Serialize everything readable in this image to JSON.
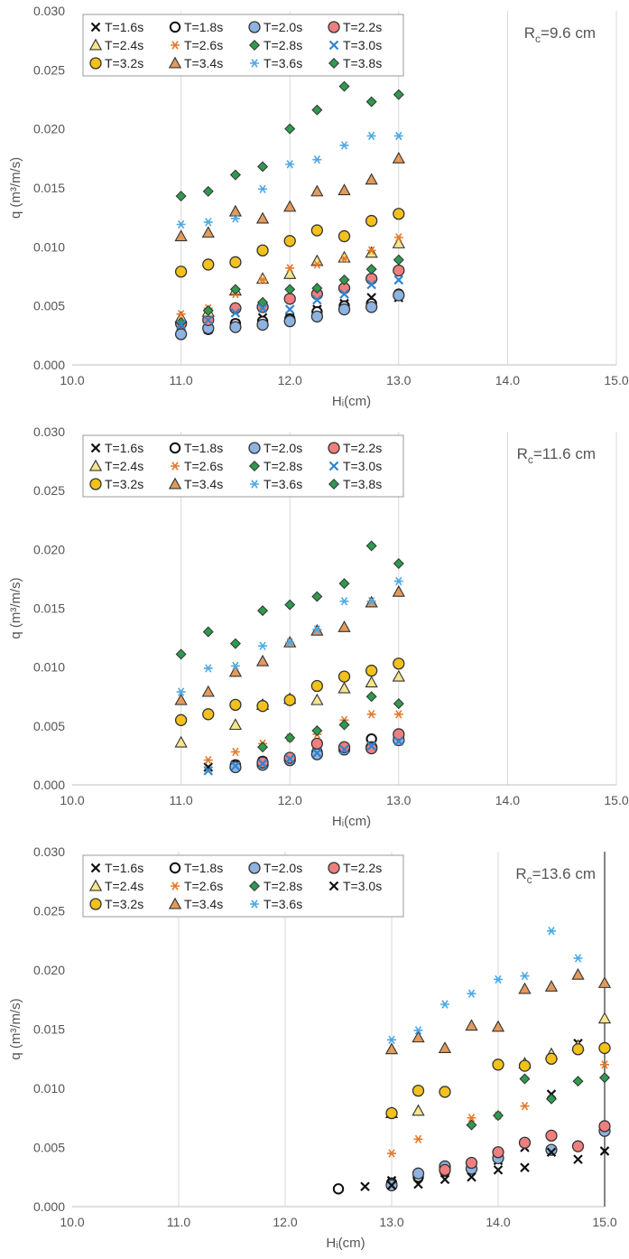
{
  "colors": {
    "black": "#111111",
    "lightblue": "#8fb3e0",
    "salmon": "#ef7f7f",
    "sand": "#f5e58c",
    "orange": "#e37a2e",
    "green": "#2e9a4e",
    "blue": "#2f84cf",
    "gold": "#f2c21b",
    "tan": "#e39a5a",
    "sky": "#4ea9e4",
    "grid": "#d9d9d9",
    "outline": "#333333"
  },
  "chart_data": [
    {
      "type": "scatter",
      "annotation_prefix": "R",
      "annotation_sub": "c",
      "annotation_suffix": "=9.6 cm",
      "xlabel": "Hᵢ(cm)",
      "ylabel": "q (m³/m/s)",
      "xlim": [
        10.0,
        15.0
      ],
      "ylim": [
        0.0,
        0.03
      ],
      "x_ticks": [
        "10.0",
        "11.0",
        "12.0",
        "13.0",
        "14.0",
        "15.0"
      ],
      "y_ticks": [
        "0.000",
        "0.005",
        "0.010",
        "0.015",
        "0.020",
        "0.025",
        "0.030"
      ],
      "grid": "vertical",
      "legend_position": "top-left",
      "series": [
        {
          "name": "T=1.6s",
          "marker": "x",
          "color": "black",
          "x": [
            11.0,
            11.25,
            11.5,
            11.75,
            12.0,
            12.25,
            12.5,
            12.75,
            13.0
          ],
          "y": [
            0.0027,
            0.003,
            0.0035,
            0.004,
            0.004,
            0.0047,
            0.0052,
            0.0057,
            0.0057
          ]
        },
        {
          "name": "T=1.8s",
          "marker": "circle-open",
          "color": "black",
          "x": [
            11.0,
            11.25,
            11.5,
            11.75,
            12.0,
            12.25,
            12.5,
            12.75,
            13.0
          ],
          "y": [
            0.0026,
            0.003,
            0.0035,
            0.0037,
            0.0039,
            0.0045,
            0.005,
            0.0052,
            0.006
          ]
        },
        {
          "name": "T=2.0s",
          "marker": "circle",
          "color": "lightblue",
          "x": [
            11.0,
            11.25,
            11.5,
            11.75,
            12.0,
            12.25,
            12.5,
            12.75,
            13.0
          ],
          "y": [
            0.0026,
            0.0031,
            0.0032,
            0.0034,
            0.0037,
            0.0041,
            0.0047,
            0.0049,
            0.0059
          ]
        },
        {
          "name": "T=2.2s",
          "marker": "circle",
          "color": "salmon",
          "x": [
            11.0,
            11.25,
            11.5,
            11.75,
            12.0,
            12.25,
            12.5,
            12.75,
            13.0
          ],
          "y": [
            0.0035,
            0.0038,
            0.0048,
            0.0049,
            0.0056,
            0.006,
            0.0065,
            0.0073,
            0.008
          ]
        },
        {
          "name": "T=2.4s",
          "marker": "triangle",
          "color": "sand",
          "x": [
            11.0,
            11.25,
            11.5,
            11.75,
            12.0,
            12.25,
            12.5,
            12.75,
            13.0
          ],
          "y": [
            0.004,
            0.0045,
            0.0063,
            0.0073,
            0.0077,
            0.0088,
            0.0091,
            0.0095,
            0.0103
          ]
        },
        {
          "name": "T=2.6s",
          "marker": "asterisk",
          "color": "orange",
          "x": [
            11.0,
            11.25,
            11.5,
            11.75,
            12.0,
            12.25,
            12.5,
            12.75,
            13.0
          ],
          "y": [
            0.0043,
            0.0048,
            0.006,
            0.0072,
            0.0082,
            0.0085,
            0.009,
            0.0097,
            0.0108
          ]
        },
        {
          "name": "T=2.8s",
          "marker": "diamond",
          "color": "green",
          "x": [
            11.0,
            11.25,
            11.5,
            11.75,
            12.0,
            12.25,
            12.5,
            12.75,
            13.0
          ],
          "y": [
            0.0036,
            0.0046,
            0.0064,
            0.0053,
            0.0064,
            0.0065,
            0.0072,
            0.0081,
            0.0089
          ]
        },
        {
          "name": "T=3.0s",
          "marker": "x",
          "color": "blue",
          "x": [
            11.0,
            11.25,
            11.5,
            11.75,
            12.0,
            12.25,
            12.5,
            12.75,
            13.0
          ],
          "y": [
            0.0034,
            0.0038,
            0.0044,
            0.0048,
            0.0047,
            0.0055,
            0.006,
            0.0068,
            0.0072
          ]
        },
        {
          "name": "T=3.2s",
          "marker": "circle",
          "color": "gold",
          "x": [
            11.0,
            11.25,
            11.5,
            11.75,
            12.0,
            12.25,
            12.5,
            12.75,
            13.0
          ],
          "y": [
            0.0079,
            0.0085,
            0.0087,
            0.0097,
            0.0105,
            0.0114,
            0.0109,
            0.0122,
            0.0128
          ]
        },
        {
          "name": "T=3.4s",
          "marker": "triangle",
          "color": "tan",
          "x": [
            11.0,
            11.25,
            11.5,
            11.75,
            12.0,
            12.25,
            12.5,
            12.75,
            13.0
          ],
          "y": [
            0.0109,
            0.0112,
            0.013,
            0.0124,
            0.0134,
            0.0147,
            0.0148,
            0.0157,
            0.0175
          ]
        },
        {
          "name": "T=3.6s",
          "marker": "asterisk",
          "color": "sky",
          "x": [
            11.0,
            11.25,
            11.5,
            11.75,
            12.0,
            12.25,
            12.5,
            12.75,
            13.0
          ],
          "y": [
            0.0119,
            0.0121,
            0.0124,
            0.0149,
            0.017,
            0.0174,
            0.0186,
            0.0194,
            0.0194
          ]
        },
        {
          "name": "T=3.8s",
          "marker": "diamond",
          "color": "green",
          "x": [
            11.0,
            11.25,
            11.5,
            11.75,
            12.0,
            12.25,
            12.5,
            12.75,
            13.0
          ],
          "y": [
            0.0143,
            0.0147,
            0.0161,
            0.0168,
            0.02,
            0.0216,
            0.0236,
            0.0223,
            0.0229
          ]
        }
      ]
    },
    {
      "type": "scatter",
      "annotation_prefix": "R",
      "annotation_sub": "c",
      "annotation_suffix": "=11.6 cm",
      "xlabel": "Hᵢ(cm)",
      "ylabel": "q (m³/m/s)",
      "xlim": [
        10.0,
        15.0
      ],
      "ylim": [
        0.0,
        0.03
      ],
      "x_ticks": [
        "10.0",
        "11.0",
        "12.0",
        "13.0",
        "14.0",
        "15.0"
      ],
      "y_ticks": [
        "0.000",
        "0.005",
        "0.010",
        "0.015",
        "0.020",
        "0.025",
        "0.030"
      ],
      "grid": "vertical",
      "legend_position": "top-left",
      "series": [
        {
          "name": "T=1.6s",
          "marker": "x",
          "color": "black",
          "x": [
            11.25,
            11.5,
            11.75,
            12.0,
            12.25,
            12.5,
            12.75,
            13.0
          ],
          "y": [
            0.0015,
            0.0017,
            0.002,
            0.0023,
            0.0028,
            0.0032,
            0.0037,
            0.004
          ]
        },
        {
          "name": "T=1.8s",
          "marker": "circle-open",
          "color": "black",
          "x": [
            11.5,
            11.75,
            12.0,
            12.25,
            12.5,
            12.75,
            13.0
          ],
          "y": [
            0.0017,
            0.002,
            0.0022,
            0.0028,
            0.0031,
            0.0039,
            0.0041
          ]
        },
        {
          "name": "T=2.0s",
          "marker": "circle",
          "color": "lightblue",
          "x": [
            11.5,
            11.75,
            12.0,
            12.25,
            12.5,
            12.75,
            13.0
          ],
          "y": [
            0.0015,
            0.0017,
            0.0021,
            0.0026,
            0.003,
            0.0032,
            0.0038
          ]
        },
        {
          "name": "T=2.2s",
          "marker": "circle",
          "color": "salmon",
          "x": [
            11.75,
            12.0,
            12.25,
            12.5,
            12.75,
            13.0
          ],
          "y": [
            0.0019,
            0.0023,
            0.0035,
            0.0032,
            0.0031,
            0.0043
          ]
        },
        {
          "name": "T=2.4s",
          "marker": "triangle",
          "color": "sand",
          "x": [
            11.0,
            11.5,
            11.75,
            12.0,
            12.25,
            12.5,
            12.75,
            13.0
          ],
          "y": [
            0.0036,
            0.0051,
            0.0068,
            0.0073,
            0.0072,
            0.0082,
            0.0087,
            0.0092
          ]
        },
        {
          "name": "T=2.6s",
          "marker": "asterisk",
          "color": "orange",
          "x": [
            11.25,
            11.5,
            11.75,
            12.0,
            12.25,
            12.5,
            12.75,
            13.0
          ],
          "y": [
            0.0021,
            0.0028,
            0.0035,
            0.004,
            0.0043,
            0.0055,
            0.006,
            0.006
          ]
        },
        {
          "name": "T=2.8s",
          "marker": "diamond",
          "color": "green",
          "x": [
            11.75,
            12.0,
            12.25,
            12.5,
            12.75,
            13.0
          ],
          "y": [
            0.0032,
            0.004,
            0.0046,
            0.0051,
            0.0075,
            0.0069
          ]
        },
        {
          "name": "T=3.0s",
          "marker": "x",
          "color": "blue",
          "x": [
            11.25,
            11.5,
            11.75,
            12.0,
            12.25,
            12.5,
            12.75,
            13.0
          ],
          "y": [
            0.0012,
            0.0016,
            0.0018,
            0.0022,
            0.0027,
            0.003,
            0.0033,
            0.0037
          ]
        },
        {
          "name": "T=3.2s",
          "marker": "circle",
          "color": "gold",
          "x": [
            11.0,
            11.25,
            11.5,
            11.75,
            12.0,
            12.25,
            12.5,
            12.75,
            13.0
          ],
          "y": [
            0.0055,
            0.006,
            0.0068,
            0.0067,
            0.0072,
            0.0084,
            0.0092,
            0.0097,
            0.0103
          ]
        },
        {
          "name": "T=3.4s",
          "marker": "triangle",
          "color": "tan",
          "x": [
            11.0,
            11.25,
            11.5,
            11.75,
            12.0,
            12.25,
            12.5,
            12.75,
            13.0
          ],
          "y": [
            0.0072,
            0.0079,
            0.0096,
            0.0105,
            0.0121,
            0.0131,
            0.0134,
            0.0155,
            0.0164
          ]
        },
        {
          "name": "T=3.6s",
          "marker": "asterisk",
          "color": "sky",
          "x": [
            11.0,
            11.25,
            11.5,
            11.75,
            12.0,
            12.25,
            12.5,
            12.75,
            13.0
          ],
          "y": [
            0.0079,
            0.0099,
            0.0101,
            0.0118,
            0.0121,
            0.0132,
            0.0156,
            0.0156,
            0.0173
          ]
        },
        {
          "name": "T=3.8s",
          "marker": "diamond",
          "color": "green",
          "x": [
            11.0,
            11.25,
            11.5,
            11.75,
            12.0,
            12.25,
            12.5,
            12.75,
            13.0
          ],
          "y": [
            0.0111,
            0.013,
            0.012,
            0.0148,
            0.0153,
            0.016,
            0.0171,
            0.0203,
            0.0188
          ]
        }
      ]
    },
    {
      "type": "scatter",
      "annotation_prefix": "R",
      "annotation_sub": "c",
      "annotation_suffix": "=13.6 cm",
      "xlabel": "Hᵢ(cm)",
      "ylabel": "q (m³/m/s)",
      "xlim": [
        10.0,
        15.0
      ],
      "ylim": [
        0.0,
        0.03
      ],
      "x_ticks": [
        "10.0",
        "11.0",
        "12.0",
        "13.0",
        "14.0",
        "15.0"
      ],
      "y_ticks": [
        "0.000",
        "0.005",
        "0.010",
        "0.015",
        "0.020",
        "0.025",
        "0.030"
      ],
      "grid": "vertical",
      "legend_position": "top-left",
      "series": [
        {
          "name": "T=1.6s",
          "marker": "x",
          "color": "black",
          "x": [
            13.0,
            13.25,
            13.5,
            13.75,
            14.0,
            14.25,
            14.5,
            14.75,
            15.0
          ],
          "y": [
            0.0022,
            0.0026,
            0.003,
            0.0033,
            0.0039,
            0.005,
            0.0095,
            0.0138,
            0.0065
          ]
        },
        {
          "name": "T=1.8s",
          "marker": "circle-open",
          "color": "black",
          "x": [
            12.5,
            13.0,
            13.25,
            13.5
          ],
          "y": [
            0.0015,
            0.002,
            0.0025,
            0.003
          ]
        },
        {
          "name": "T=2.0s",
          "marker": "circle",
          "color": "lightblue",
          "x": [
            13.0,
            13.25,
            13.5,
            13.75,
            14.0,
            14.5,
            15.0
          ],
          "y": [
            0.0018,
            0.0028,
            0.0034,
            0.0032,
            0.0041,
            0.0048,
            0.0064
          ]
        },
        {
          "name": "T=2.2s",
          "marker": "circle",
          "color": "salmon",
          "x": [
            13.5,
            13.75,
            14.0,
            14.25,
            14.5,
            14.75,
            15.0
          ],
          "y": [
            0.0031,
            0.0037,
            0.0046,
            0.0054,
            0.006,
            0.0051,
            0.0068
          ]
        },
        {
          "name": "T=2.4s",
          "marker": "triangle",
          "color": "sand",
          "x": [
            13.0,
            13.25,
            14.25,
            14.5,
            14.75,
            15.0
          ],
          "y": [
            0.0079,
            0.0081,
            0.0121,
            0.0129,
            0.0136,
            0.0159
          ]
        },
        {
          "name": "T=2.6s",
          "marker": "asterisk",
          "color": "orange",
          "x": [
            13.0,
            13.25,
            13.75,
            14.0,
            14.25,
            15.0
          ],
          "y": [
            0.0045,
            0.0057,
            0.0075,
            0.0077,
            0.0085,
            0.012
          ]
        },
        {
          "name": "T=2.8s",
          "marker": "diamond",
          "color": "green",
          "x": [
            13.75,
            14.0,
            14.25,
            14.5,
            14.75,
            15.0
          ],
          "y": [
            0.0069,
            0.0077,
            0.0108,
            0.0091,
            0.0106,
            0.0109
          ]
        },
        {
          "name": "T=3.0s",
          "marker": "x",
          "color": "black",
          "x": [
            12.75,
            13.0,
            13.25,
            13.5,
            13.75,
            14.0,
            14.25,
            14.5,
            14.75,
            15.0
          ],
          "y": [
            0.0017,
            0.0018,
            0.0019,
            0.0023,
            0.0025,
            0.0031,
            0.0033,
            0.0046,
            0.004,
            0.0047
          ]
        },
        {
          "name": "T=3.2s",
          "marker": "circle",
          "color": "gold",
          "x": [
            13.0,
            13.25,
            13.5,
            14.0,
            14.25,
            14.5,
            14.75,
            15.0
          ],
          "y": [
            0.0079,
            0.0098,
            0.0097,
            0.012,
            0.0119,
            0.0125,
            0.0133,
            0.0134
          ]
        },
        {
          "name": "T=3.4s",
          "marker": "triangle",
          "color": "tan",
          "x": [
            13.0,
            13.25,
            13.5,
            13.75,
            14.0,
            14.25,
            14.5,
            14.75,
            15.0
          ],
          "y": [
            0.0133,
            0.0143,
            0.0134,
            0.0153,
            0.0152,
            0.0184,
            0.0186,
            0.0196,
            0.0189
          ]
        },
        {
          "name": "T=3.6s",
          "marker": "asterisk",
          "color": "sky",
          "x": [
            13.0,
            13.25,
            13.5,
            13.75,
            14.0,
            14.25,
            14.5,
            14.75
          ],
          "y": [
            0.0141,
            0.0149,
            0.0171,
            0.018,
            0.0192,
            0.0195,
            0.0233,
            0.021
          ]
        }
      ]
    }
  ]
}
